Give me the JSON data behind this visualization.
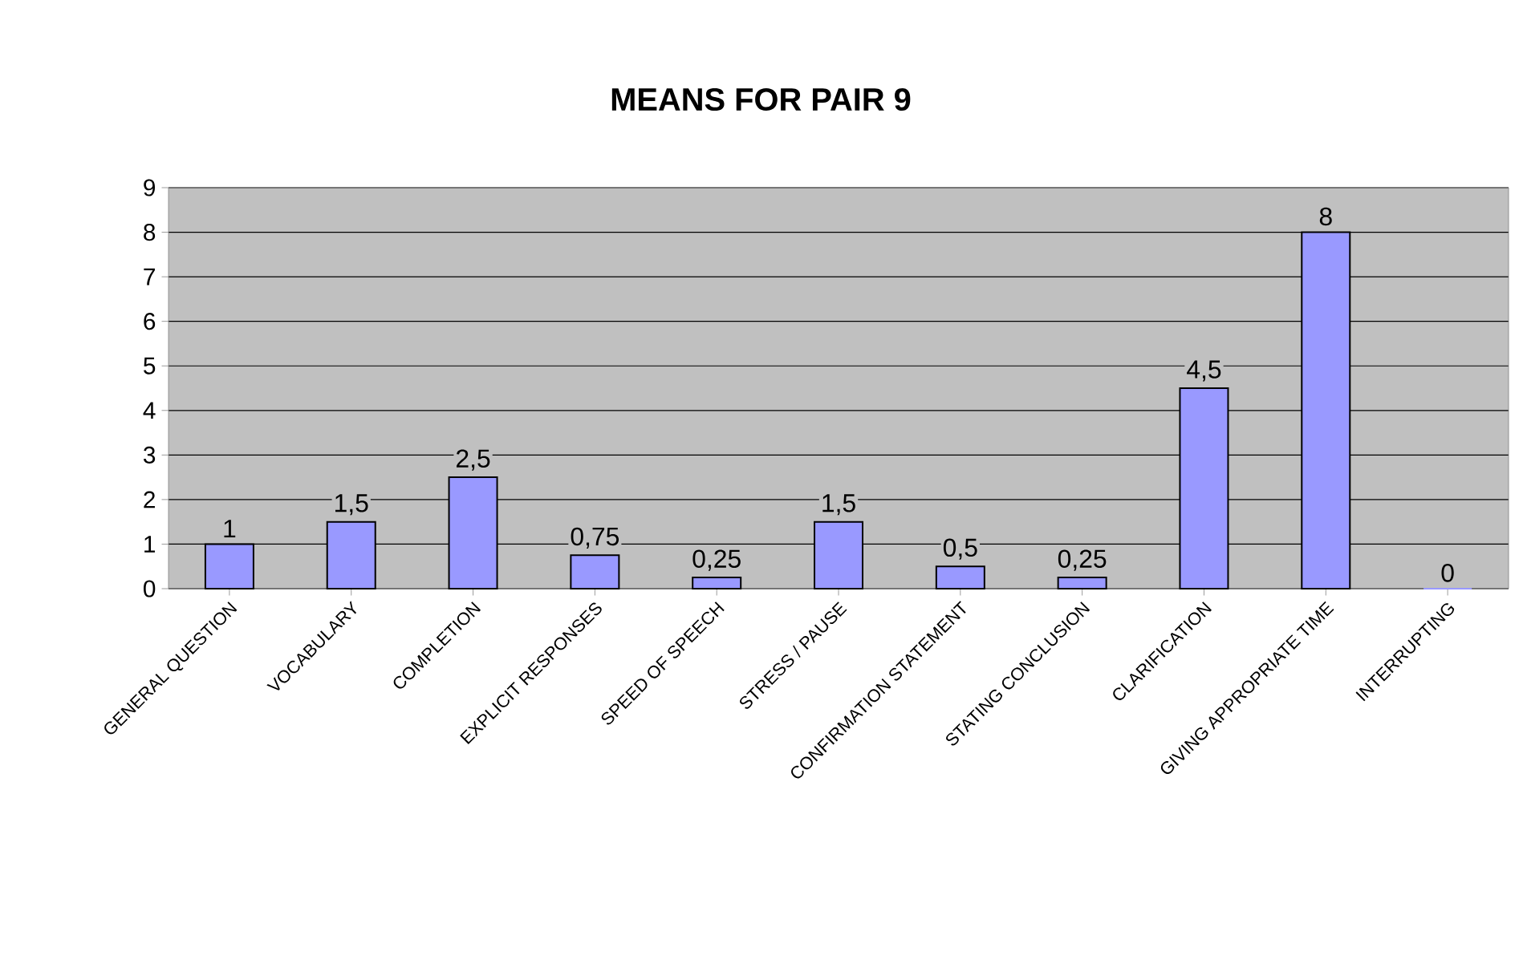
{
  "chart_data": {
    "type": "bar",
    "title": "MEANS FOR PAIR 9",
    "categories": [
      "GENERAL QUESTION",
      "VOCABULARY",
      "COMPLETION",
      "EXPLICIT RESPONSES",
      "SPEED OF SPEECH",
      "STRESS / PAUSE",
      "CONFIRMATION STATEMENT",
      "STATING CONCLUSION",
      "CLARIFICATION",
      "GIVING APPROPRIATE TIME",
      "INTERRUPTING"
    ],
    "values": [
      1,
      1.5,
      2.5,
      0.75,
      0.25,
      1.5,
      0.5,
      0.25,
      4.5,
      8,
      0
    ],
    "value_labels": [
      "1",
      "1,5",
      "2,5",
      "0,75",
      "0,25",
      "1,5",
      "0,5",
      "0,25",
      "4,5",
      "8",
      "0"
    ],
    "color": "#9999ff",
    "ylim": [
      0,
      9
    ],
    "yticks": [
      0,
      1,
      2,
      3,
      4,
      5,
      6,
      7,
      8,
      9
    ],
    "grid": "y"
  }
}
